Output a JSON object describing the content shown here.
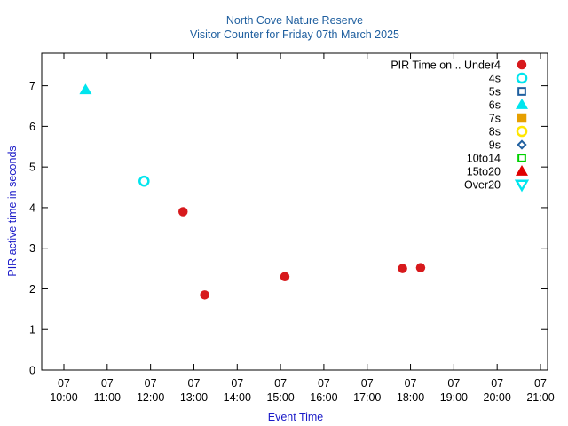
{
  "chart_data": {
    "type": "scatter",
    "title": "North Cove Nature Reserve",
    "subtitle": "Visitor Counter for Friday 07th March 2025",
    "xlabel": "Event Time",
    "ylabel": "PIR active time in seconds",
    "xlim": [
      "10:00",
      "21:00"
    ],
    "ylim": [
      0,
      7.8
    ],
    "yticks": [
      0,
      1,
      2,
      3,
      4,
      5,
      6,
      7
    ],
    "xticks": [
      {
        "day": "07",
        "time": "10:00"
      },
      {
        "day": "07",
        "time": "11:00"
      },
      {
        "day": "07",
        "time": "12:00"
      },
      {
        "day": "07",
        "time": "13:00"
      },
      {
        "day": "07",
        "time": "14:00"
      },
      {
        "day": "07",
        "time": "15:00"
      },
      {
        "day": "07",
        "time": "16:00"
      },
      {
        "day": "07",
        "time": "17:00"
      },
      {
        "day": "07",
        "time": "18:00"
      },
      {
        "day": "07",
        "time": "19:00"
      },
      {
        "day": "07",
        "time": "20:00"
      },
      {
        "day": "07",
        "time": "21:00"
      }
    ],
    "legend_position": "top-right",
    "series": [
      {
        "name": "PIR Time on .. Under4",
        "marker": "filled-circle",
        "color": "#d7191c",
        "points": [
          {
            "x": "12:45",
            "y": 3.9
          },
          {
            "x": "13:15",
            "y": 1.85
          },
          {
            "x": "15:06",
            "y": 2.3
          },
          {
            "x": "17:49",
            "y": 2.5
          },
          {
            "x": "18:14",
            "y": 2.52
          }
        ]
      },
      {
        "name": "4s",
        "marker": "open-circle",
        "color": "#00e5ee",
        "points": [
          {
            "x": "11:51",
            "y": 4.65
          }
        ]
      },
      {
        "name": "5s",
        "marker": "open-square",
        "color": "#1f5f9f",
        "points": []
      },
      {
        "name": "6s",
        "marker": "filled-triangle-up",
        "color": "#00e5ee",
        "points": [
          {
            "x": "10:30",
            "y": 6.9
          }
        ]
      },
      {
        "name": "7s",
        "marker": "filled-square",
        "color": "#e69f00",
        "points": []
      },
      {
        "name": "8s",
        "marker": "open-circle",
        "color": "#ffe600",
        "points": []
      },
      {
        "name": "9s",
        "marker": "open-diamond",
        "color": "#1f5f9f",
        "points": []
      },
      {
        "name": "10to14",
        "marker": "open-square",
        "color": "#00d100",
        "points": []
      },
      {
        "name": "15to20",
        "marker": "filled-triangle-up",
        "color": "#e00000",
        "points": []
      },
      {
        "name": "Over20",
        "marker": "open-triangle-down",
        "color": "#00e5ee",
        "points": []
      }
    ]
  }
}
